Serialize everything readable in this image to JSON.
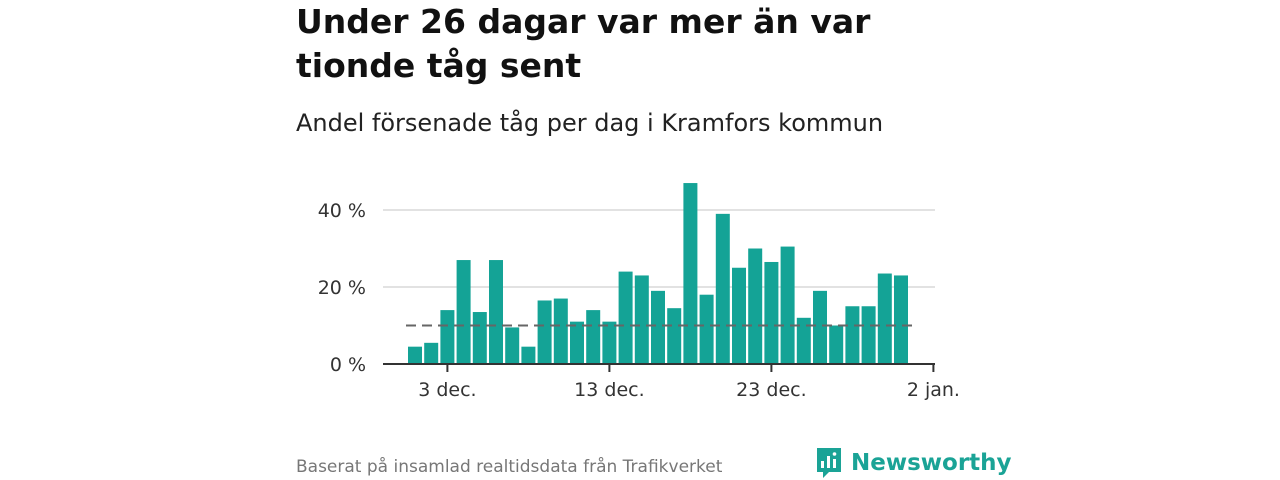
{
  "title": "Under 26 dagar var mer än var tionde tåg sent",
  "subtitle": "Andel försenade tåg per dag i Kramfors kommun",
  "source": "Baserat på insamlad realtidsdata från Trafikverket",
  "brand": {
    "name": "Newsworthy",
    "color": "#1aa396",
    "icon": "newsworthy-logo-icon"
  },
  "chart_data": {
    "type": "bar",
    "x_start": "1 dec.",
    "categories": [
      "1 dec.",
      "2 dec.",
      "3 dec.",
      "4 dec.",
      "5 dec.",
      "6 dec.",
      "7 dec.",
      "8 dec.",
      "9 dec.",
      "10 dec.",
      "11 dec.",
      "12 dec.",
      "13 dec.",
      "14 dec.",
      "15 dec.",
      "16 dec.",
      "17 dec.",
      "18 dec.",
      "19 dec.",
      "20 dec.",
      "21 dec.",
      "22 dec.",
      "23 dec.",
      "24 dec.",
      "25 dec.",
      "26 dec.",
      "27 dec.",
      "28 dec.",
      "29 dec.",
      "30 dec.",
      "31 dec."
    ],
    "values": [
      4.5,
      5.5,
      14,
      27,
      13.5,
      27,
      9.5,
      4.5,
      16.5,
      17,
      11,
      14,
      11,
      24,
      23,
      19,
      14.5,
      47,
      18,
      39,
      25,
      30,
      26.5,
      30.5,
      12,
      19,
      10,
      15,
      15,
      23.5,
      23
    ],
    "reference_line": {
      "value": 10,
      "style": "dashed",
      "color": "#666666"
    },
    "xticks": [
      {
        "label": "3 dec.",
        "day": 3
      },
      {
        "label": "13 dec.",
        "day": 13
      },
      {
        "label": "23 dec.",
        "day": 23
      },
      {
        "label": "2 jan.",
        "day": 33
      }
    ],
    "yticks": [
      {
        "label": "0 %",
        "value": 0
      },
      {
        "label": "20 %",
        "value": 20
      },
      {
        "label": "40 %",
        "value": 40
      }
    ],
    "ylim": [
      0,
      48
    ],
    "grid": true,
    "bar_color": "#14a396",
    "xlabel": "",
    "ylabel": ""
  }
}
